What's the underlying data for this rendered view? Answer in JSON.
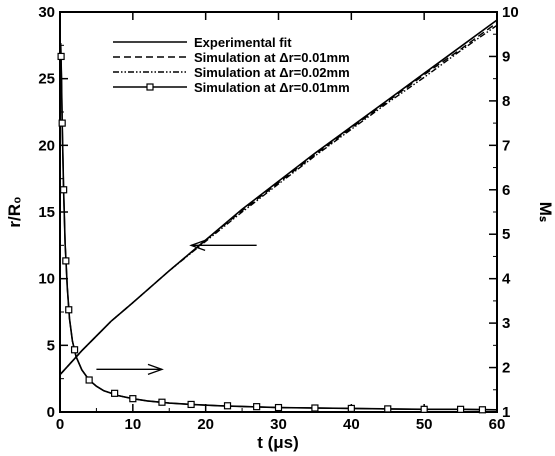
{
  "chart_data": {
    "type": "line",
    "xlabel": "t (μs)",
    "ylabel_left": "r/R₀",
    "ylabel_right": "Mₛ",
    "xlim": [
      0,
      60
    ],
    "ylim_left": [
      0,
      30
    ],
    "ylim_right": [
      1,
      10
    ],
    "x_ticks": [
      "0",
      "10",
      "20",
      "30",
      "40",
      "50",
      "60"
    ],
    "y_ticks_left": [
      "0",
      "5",
      "10",
      "15",
      "20",
      "25",
      "30"
    ],
    "y_ticks_right": [
      "1",
      "2",
      "3",
      "4",
      "5",
      "6",
      "7",
      "8",
      "9",
      "10"
    ],
    "legend": {
      "position": "top-center",
      "entries": [
        "Experimental fit",
        "Simulation at Δr=0.01mm",
        "Simulation at Δr=0.02mm",
        "Simulation at Δr=0.01mm"
      ]
    },
    "series": [
      {
        "name": "Experimental fit",
        "axis": "left",
        "style": "solid",
        "x": [
          0,
          1,
          2,
          3,
          5,
          7,
          10,
          15,
          20,
          25,
          30,
          35,
          40,
          45,
          50,
          55,
          60
        ],
        "y": [
          2.8,
          3.4,
          4.0,
          4.6,
          5.7,
          6.8,
          8.2,
          10.6,
          12.9,
          15.2,
          17.3,
          19.4,
          21.4,
          23.4,
          25.4,
          27.4,
          29.4
        ]
      },
      {
        "name": "Simulation at Δr=0.01mm",
        "axis": "left",
        "style": "dashed",
        "x": [
          0,
          1,
          2,
          3,
          5,
          7,
          10,
          15,
          20,
          25,
          30,
          35,
          40,
          45,
          50,
          55,
          60
        ],
        "y": [
          2.8,
          3.4,
          4.0,
          4.6,
          5.7,
          6.8,
          8.2,
          10.6,
          12.9,
          15.1,
          17.2,
          19.3,
          21.3,
          23.3,
          25.3,
          27.2,
          29.2
        ]
      },
      {
        "name": "Simulation at Δr=0.02mm",
        "axis": "left",
        "style": "dashdot",
        "x": [
          0,
          1,
          2,
          3,
          5,
          7,
          10,
          15,
          20,
          25,
          30,
          35,
          40,
          45,
          50,
          55,
          60
        ],
        "y": [
          2.8,
          3.4,
          4.0,
          4.6,
          5.7,
          6.8,
          8.2,
          10.6,
          12.8,
          15.0,
          17.1,
          19.2,
          21.2,
          23.2,
          25.1,
          27.1,
          29.0
        ]
      },
      {
        "name": "Simulation at Δr=0.01mm",
        "axis": "right",
        "style": "solid-square",
        "x": [
          0.1,
          0.2,
          0.3,
          0.5,
          0.7,
          1.0,
          1.3,
          1.7,
          2.2,
          3,
          4,
          5,
          6,
          8,
          10,
          12,
          15,
          18,
          22,
          26,
          30,
          35,
          40,
          45,
          50,
          55,
          60
        ],
        "y": [
          9.3,
          8.5,
          7.5,
          6.0,
          4.8,
          3.8,
          3.1,
          2.6,
          2.25,
          1.95,
          1.72,
          1.58,
          1.48,
          1.37,
          1.3,
          1.25,
          1.2,
          1.17,
          1.14,
          1.12,
          1.1,
          1.09,
          1.08,
          1.07,
          1.06,
          1.06,
          1.05
        ]
      },
      {
        "name": "Simulation at Δr=0.01mm",
        "axis": "right",
        "style": "solid",
        "x": [
          0.1,
          0.2,
          0.3,
          0.5,
          0.7,
          1.0,
          1.3,
          1.7,
          2.2,
          3,
          4,
          5,
          6,
          8,
          10,
          12,
          15,
          18,
          22,
          26,
          30,
          35,
          40,
          45,
          50,
          55,
          60
        ],
        "y": [
          9.3,
          8.5,
          7.5,
          6.0,
          4.8,
          3.8,
          3.1,
          2.6,
          2.25,
          1.95,
          1.72,
          1.58,
          1.48,
          1.37,
          1.3,
          1.25,
          1.2,
          1.17,
          1.14,
          1.12,
          1.1,
          1.09,
          1.08,
          1.07,
          1.06,
          1.06,
          1.05
        ]
      }
    ],
    "markers_right": {
      "x": [
        0.15,
        0.3,
        0.5,
        0.8,
        1.2,
        2,
        4,
        7.5,
        10,
        14,
        18,
        23,
        27,
        30,
        35,
        40,
        45,
        50,
        55,
        58
      ],
      "y": [
        9.0,
        7.5,
        6.0,
        4.4,
        3.3,
        2.4,
        1.72,
        1.42,
        1.3,
        1.22,
        1.17,
        1.14,
        1.12,
        1.1,
        1.09,
        1.08,
        1.07,
        1.06,
        1.06,
        1.05
      ]
    },
    "annotations": [
      {
        "type": "arrow",
        "direction": "left",
        "from": [
          27,
          12.5
        ],
        "to": [
          18,
          12.5
        ],
        "axis": "left"
      },
      {
        "type": "arrow",
        "direction": "right",
        "from": [
          5,
          3.2
        ],
        "to": [
          14,
          3.2
        ],
        "axis": "left"
      }
    ]
  }
}
